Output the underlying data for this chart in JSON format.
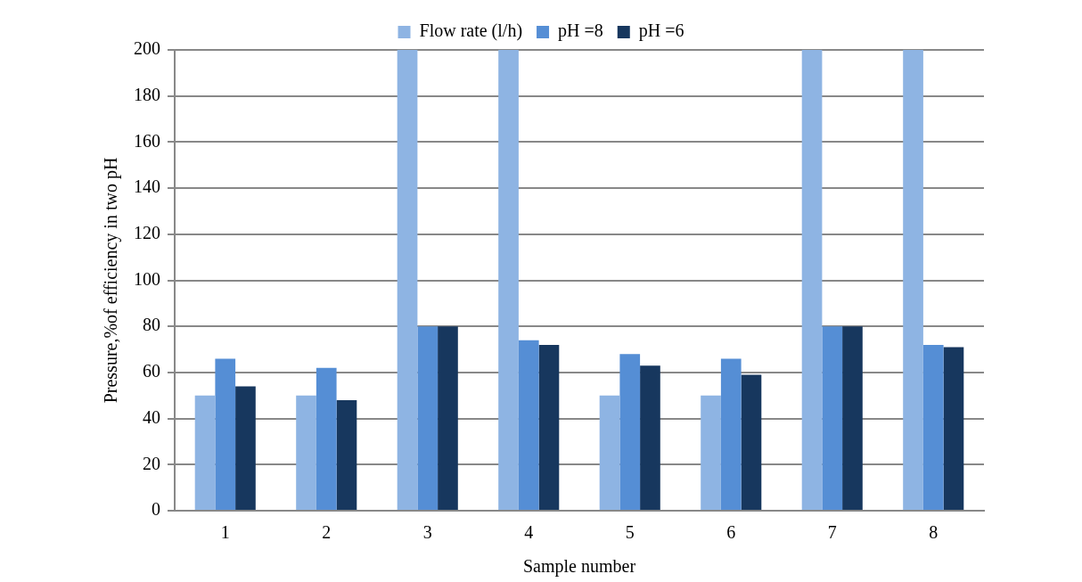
{
  "chart_data": {
    "type": "bar",
    "xlabel": "Sample number",
    "ylabel": "Pressure,%of efficiency in two pH",
    "categories": [
      "1",
      "2",
      "3",
      "4",
      "5",
      "6",
      "7",
      "8"
    ],
    "series": [
      {
        "name": "Flow rate (l/h)",
        "color": "#8eb4e3",
        "values": [
          50,
          50,
          200,
          200,
          50,
          50,
          200,
          200
        ]
      },
      {
        "name": "pH =8",
        "color": "#558ed5",
        "values": [
          66,
          62,
          80,
          74,
          68,
          66,
          80,
          72
        ]
      },
      {
        "name": "pH =6",
        "color": "#17375e",
        "values": [
          54,
          48,
          80,
          72,
          63,
          59,
          80,
          71
        ]
      }
    ],
    "ylim": [
      0,
      200
    ],
    "yticks": [
      0,
      20,
      40,
      60,
      80,
      100,
      120,
      140,
      160,
      180,
      200
    ],
    "grid": "y",
    "legend": "top"
  }
}
